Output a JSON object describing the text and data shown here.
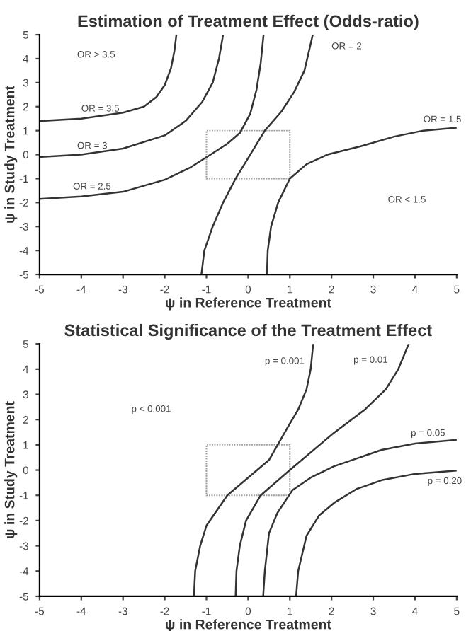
{
  "chart_data": [
    {
      "type": "line",
      "title": "Estimation of Treatment Effect (Odds-ratio)",
      "xlabel": "ψ in Reference Treatment",
      "ylabel": "ψ in Study Treatment",
      "xlim": [
        -5,
        5
      ],
      "ylim": [
        -5,
        5
      ],
      "xticks": [
        -5,
        -4,
        -3,
        -2,
        -1,
        0,
        1,
        2,
        3,
        4,
        5
      ],
      "yticks": [
        -5,
        -4,
        -3,
        -2,
        -1,
        0,
        1,
        2,
        3,
        4,
        5
      ],
      "grid": false,
      "legend": false,
      "marker": "none",
      "line_style": "solid",
      "series": [
        {
          "color": "#333333",
          "x": [
            -5,
            -4,
            -3,
            -2.5,
            -2.2,
            -2,
            -1.85,
            -1.77,
            -1.72
          ],
          "values": [
            1.4,
            1.5,
            1.75,
            2.0,
            2.4,
            2.9,
            3.6,
            4.3,
            5
          ]
        },
        {
          "color": "#333333",
          "x": [
            -5,
            -4,
            -3,
            -2,
            -1.5,
            -1.1,
            -0.85,
            -0.7,
            -0.6
          ],
          "values": [
            -0.1,
            0.0,
            0.25,
            0.8,
            1.4,
            2.2,
            3.0,
            4.0,
            5
          ]
        },
        {
          "color": "#333333",
          "x": [
            -5,
            -4,
            -3,
            -2,
            -1.4,
            -0.9,
            -0.5,
            -0.2,
            0.05,
            0.2,
            0.3,
            0.37
          ],
          "values": [
            -1.85,
            -1.75,
            -1.55,
            -1.05,
            -0.55,
            0.0,
            0.45,
            0.9,
            1.7,
            2.7,
            3.8,
            5
          ]
        },
        {
          "color": "#333333",
          "x": [
            -1.12,
            -1.05,
            -0.85,
            -0.6,
            -0.3,
            0.05,
            0.4,
            0.8,
            1.1,
            1.35,
            1.55
          ],
          "values": [
            -5,
            -4,
            -3,
            -2,
            -1,
            0,
            1,
            1.8,
            2.6,
            3.5,
            5
          ]
        },
        {
          "color": "#333333",
          "x": [
            0.45,
            0.47,
            0.55,
            0.72,
            1.0,
            1.4,
            1.9,
            2.7,
            3.5,
            4.2,
            5
          ],
          "values": [
            -5,
            -4,
            -3,
            -2,
            -1,
            -0.4,
            0,
            0.35,
            0.75,
            1.0,
            1.12
          ]
        }
      ],
      "annotations": [
        "OR > 3.5",
        "OR = 3.5",
        "OR = 3",
        "OR = 2.5",
        "OR = 2",
        "OR = 1.5",
        "OR < 1.5"
      ]
    },
    {
      "type": "line",
      "title": "Statistical Significance of the Treatment Effect",
      "xlabel": "ψ in Reference Treatment",
      "ylabel": "ψ in Study Treatment",
      "xlim": [
        -5,
        5
      ],
      "ylim": [
        -5,
        5
      ],
      "xticks": [
        -5,
        -4,
        -3,
        -2,
        -1,
        0,
        1,
        2,
        3,
        4,
        5
      ],
      "yticks": [
        -5,
        -4,
        -3,
        -2,
        -1,
        0,
        1,
        2,
        3,
        4,
        5
      ],
      "grid": false,
      "legend": false,
      "marker": "none",
      "line_style": "solid",
      "series": [
        {
          "color": "#333333",
          "x": [
            -1.3,
            -1.27,
            -1.15,
            -1.0,
            -0.5,
            0.0,
            0.5,
            0.95,
            1.2,
            1.4,
            1.5,
            1.56
          ],
          "values": [
            -5,
            -4,
            -3,
            -2.2,
            -1,
            -0.3,
            0.4,
            1.7,
            2.4,
            3.2,
            4,
            5
          ]
        },
        {
          "color": "#333333",
          "x": [
            -0.3,
            -0.28,
            -0.2,
            -0.05,
            0.3,
            1.0,
            2.0,
            2.8,
            3.3,
            3.6,
            3.85
          ],
          "values": [
            -5,
            -4,
            -3,
            -2,
            -1,
            0,
            1.4,
            2.4,
            3.2,
            4,
            5
          ]
        },
        {
          "color": "#333333",
          "x": [
            0.36,
            0.4,
            0.5,
            0.7,
            1.06,
            1.5,
            2.06,
            3.2,
            4,
            5
          ],
          "values": [
            -5,
            -4,
            -2.5,
            -1.7,
            -0.8,
            -0.3,
            0.15,
            0.8,
            1.05,
            1.2
          ]
        },
        {
          "color": "#333333",
          "x": [
            1.15,
            1.2,
            1.4,
            1.7,
            2.06,
            2.6,
            3.2,
            4,
            5
          ],
          "values": [
            -5,
            -4,
            -2.6,
            -1.8,
            -1.3,
            -0.75,
            -0.4,
            -0.15,
            -0.02
          ]
        }
      ],
      "annotations": [
        "p = 0.001",
        "p = 0.01",
        "p < 0.001",
        "p = 0.05",
        "p = 0.20"
      ]
    }
  ]
}
